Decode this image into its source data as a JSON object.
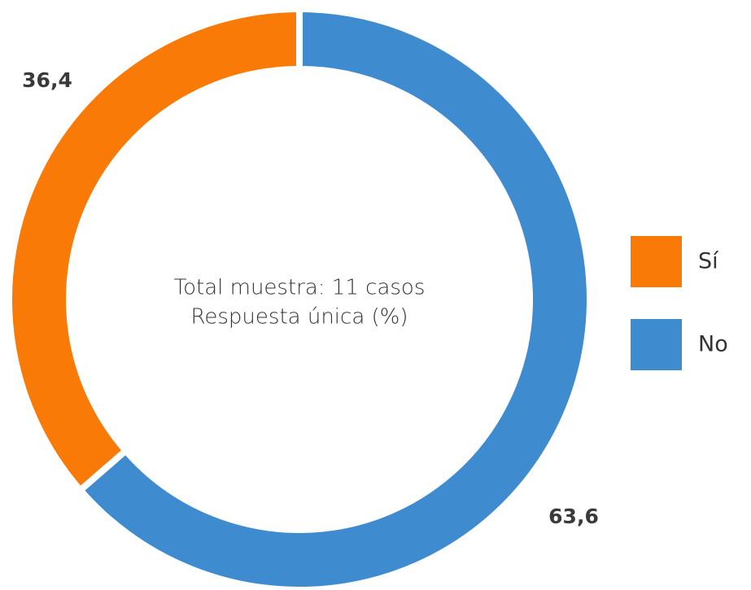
{
  "chart_data": {
    "type": "donut",
    "categories": [
      "Sí",
      "No"
    ],
    "values": [
      36.4,
      63.6
    ],
    "value_labels": [
      "36,4",
      "63,6"
    ],
    "colors": [
      "#f97a06",
      "#3f8bcf"
    ],
    "annotations": [
      "Total muestra: 11 casos",
      "Respuesta única (%)"
    ],
    "legend": "right"
  }
}
